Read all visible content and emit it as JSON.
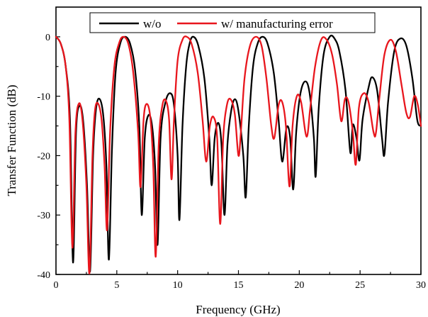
{
  "chart_data": {
    "type": "line",
    "xlabel": "Frequency (GHz)",
    "ylabel": "Transfer Function (dB)",
    "xlim": [
      0,
      30
    ],
    "ylim": [
      -40,
      5
    ],
    "x_ticks": [
      0,
      5,
      10,
      15,
      20,
      25,
      30
    ],
    "y_ticks": [
      0,
      -10,
      -20,
      -30,
      -40
    ],
    "grid": false,
    "legend_position": "top-center",
    "series": [
      {
        "name": "w/o",
        "color": "#000000",
        "points": [
          [
            0,
            0
          ],
          [
            0.4,
            -1.2
          ],
          [
            0.8,
            -5
          ],
          [
            1.15,
            -14
          ],
          [
            1.4,
            -38
          ],
          [
            1.65,
            -16
          ],
          [
            1.95,
            -11.6
          ],
          [
            2.25,
            -14.5
          ],
          [
            2.55,
            -25
          ],
          [
            2.8,
            -39.5
          ],
          [
            3.05,
            -20
          ],
          [
            3.3,
            -12
          ],
          [
            3.6,
            -10.5
          ],
          [
            3.9,
            -13.5
          ],
          [
            4.15,
            -22
          ],
          [
            4.35,
            -37.5
          ],
          [
            4.6,
            -19
          ],
          [
            4.9,
            -6
          ],
          [
            5.3,
            -1
          ],
          [
            5.7,
            0
          ],
          [
            6.1,
            -1.2
          ],
          [
            6.5,
            -5.5
          ],
          [
            6.85,
            -15
          ],
          [
            7.05,
            -30
          ],
          [
            7.3,
            -17
          ],
          [
            7.6,
            -13.2
          ],
          [
            7.9,
            -15
          ],
          [
            8.15,
            -22
          ],
          [
            8.35,
            -35
          ],
          [
            8.6,
            -17
          ],
          [
            9.0,
            -11
          ],
          [
            9.4,
            -9.5
          ],
          [
            9.7,
            -11.5
          ],
          [
            10.0,
            -20
          ],
          [
            10.15,
            -30.8
          ],
          [
            10.4,
            -15
          ],
          [
            10.7,
            -5
          ],
          [
            11.0,
            -1
          ],
          [
            11.3,
            0
          ],
          [
            11.7,
            -1.5
          ],
          [
            12.2,
            -7
          ],
          [
            12.6,
            -17
          ],
          [
            12.8,
            -25
          ],
          [
            13.05,
            -17
          ],
          [
            13.35,
            -14.5
          ],
          [
            13.6,
            -18
          ],
          [
            13.85,
            -30
          ],
          [
            14.1,
            -18
          ],
          [
            14.4,
            -12.5
          ],
          [
            14.7,
            -10.5
          ],
          [
            15.0,
            -12.5
          ],
          [
            15.4,
            -20
          ],
          [
            15.6,
            -27
          ],
          [
            15.85,
            -15
          ],
          [
            16.2,
            -5
          ],
          [
            16.6,
            -1
          ],
          [
            17.0,
            0
          ],
          [
            17.4,
            -1.2
          ],
          [
            17.9,
            -6
          ],
          [
            18.3,
            -14
          ],
          [
            18.6,
            -21
          ],
          [
            18.95,
            -15.3
          ],
          [
            19.25,
            -17
          ],
          [
            19.5,
            -25.7
          ],
          [
            19.75,
            -16
          ],
          [
            20.1,
            -9.5
          ],
          [
            20.5,
            -7.5
          ],
          [
            20.85,
            -9.5
          ],
          [
            21.2,
            -17
          ],
          [
            21.35,
            -23.5
          ],
          [
            21.6,
            -12
          ],
          [
            22.0,
            -3
          ],
          [
            22.5,
            0
          ],
          [
            22.9,
            -0.3
          ],
          [
            23.3,
            -2.5
          ],
          [
            23.8,
            -9
          ],
          [
            24.2,
            -19.5
          ],
          [
            24.4,
            -14.8
          ],
          [
            24.7,
            -17
          ],
          [
            24.95,
            -20.8
          ],
          [
            25.2,
            -14
          ],
          [
            25.7,
            -8.5
          ],
          [
            26.0,
            -6.8
          ],
          [
            26.4,
            -9
          ],
          [
            26.8,
            -17
          ],
          [
            27.0,
            -19.8
          ],
          [
            27.3,
            -11
          ],
          [
            27.8,
            -2.5
          ],
          [
            28.3,
            -0.3
          ],
          [
            28.8,
            -1.5
          ],
          [
            29.3,
            -7
          ],
          [
            29.7,
            -14
          ],
          [
            30.0,
            -15
          ]
        ]
      },
      {
        "name": "w/ manufacturing error",
        "color": "#e8161d",
        "points": [
          [
            0,
            0
          ],
          [
            0.4,
            -1.2
          ],
          [
            0.8,
            -5
          ],
          [
            1.1,
            -14
          ],
          [
            1.35,
            -35.5
          ],
          [
            1.6,
            -16
          ],
          [
            1.9,
            -11.2
          ],
          [
            2.2,
            -14.5
          ],
          [
            2.5,
            -25
          ],
          [
            2.75,
            -39.8
          ],
          [
            3.0,
            -20
          ],
          [
            3.2,
            -12.5
          ],
          [
            3.45,
            -11.2
          ],
          [
            3.75,
            -14
          ],
          [
            4.0,
            -22
          ],
          [
            4.2,
            -32.5
          ],
          [
            4.45,
            -16
          ],
          [
            4.8,
            -5
          ],
          [
            5.2,
            -1
          ],
          [
            5.55,
            0
          ],
          [
            5.95,
            -1.2
          ],
          [
            6.35,
            -6
          ],
          [
            6.75,
            -16
          ],
          [
            6.95,
            -25.3
          ],
          [
            7.2,
            -14
          ],
          [
            7.45,
            -11.3
          ],
          [
            7.75,
            -13.5
          ],
          [
            8.0,
            -22
          ],
          [
            8.2,
            -37
          ],
          [
            8.45,
            -18
          ],
          [
            8.75,
            -11.5
          ],
          [
            9.05,
            -10.8
          ],
          [
            9.3,
            -14
          ],
          [
            9.5,
            -24
          ],
          [
            9.7,
            -14
          ],
          [
            10.0,
            -4
          ],
          [
            10.4,
            -0.5
          ],
          [
            10.75,
            0
          ],
          [
            11.15,
            -1.2
          ],
          [
            11.65,
            -6
          ],
          [
            12.05,
            -14
          ],
          [
            12.35,
            -21
          ],
          [
            12.65,
            -15
          ],
          [
            12.95,
            -13.5
          ],
          [
            13.25,
            -17
          ],
          [
            13.5,
            -31.5
          ],
          [
            13.75,
            -17
          ],
          [
            14.05,
            -11.5
          ],
          [
            14.35,
            -10.5
          ],
          [
            14.7,
            -13
          ],
          [
            15.0,
            -20
          ],
          [
            15.2,
            -16
          ],
          [
            15.5,
            -7
          ],
          [
            15.95,
            -1.5
          ],
          [
            16.45,
            0
          ],
          [
            16.9,
            -1.5
          ],
          [
            17.3,
            -7
          ],
          [
            17.7,
            -15
          ],
          [
            17.95,
            -17
          ],
          [
            18.3,
            -11.5
          ],
          [
            18.6,
            -11
          ],
          [
            18.9,
            -15
          ],
          [
            19.2,
            -25.2
          ],
          [
            19.45,
            -15
          ],
          [
            19.8,
            -10
          ],
          [
            20.15,
            -11
          ],
          [
            20.6,
            -16.8
          ],
          [
            20.9,
            -12
          ],
          [
            21.3,
            -5
          ],
          [
            21.8,
            -0.5
          ],
          [
            22.25,
            -0.5
          ],
          [
            22.7,
            -3
          ],
          [
            23.1,
            -8
          ],
          [
            23.45,
            -14.2
          ],
          [
            23.75,
            -10.5
          ],
          [
            24.05,
            -11
          ],
          [
            24.4,
            -16
          ],
          [
            24.65,
            -21.5
          ],
          [
            24.9,
            -12
          ],
          [
            25.3,
            -9.5
          ],
          [
            25.7,
            -11
          ],
          [
            26.1,
            -16
          ],
          [
            26.3,
            -16.2
          ],
          [
            26.6,
            -10
          ],
          [
            27.0,
            -3
          ],
          [
            27.5,
            -0.5
          ],
          [
            27.95,
            -2.5
          ],
          [
            28.4,
            -8
          ],
          [
            28.8,
            -12.8
          ],
          [
            29.1,
            -13.5
          ],
          [
            29.45,
            -10
          ],
          [
            29.75,
            -11.5
          ],
          [
            30.0,
            -15
          ]
        ]
      }
    ]
  }
}
